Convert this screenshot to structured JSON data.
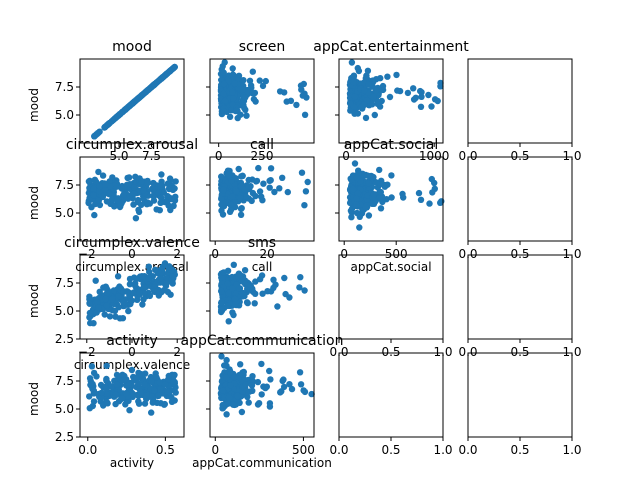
{
  "figure": {
    "background": "#ffffff",
    "marker_color": "#1f77b4"
  },
  "chart_data": [
    {
      "type": "scatter",
      "title": "mood",
      "ylabel": "mood",
      "xlabel": "",
      "row": 0,
      "col": 0,
      "xlim": [
        2,
        10
      ],
      "ylim": [
        2.5,
        10
      ],
      "xticks": [
        "5.0",
        "7.5"
      ],
      "yticks": [
        "5.0",
        "7.5"
      ],
      "shape": "diagonal",
      "x": [],
      "y": []
    },
    {
      "type": "scatter",
      "title": "screen",
      "ylabel": "",
      "xlabel": "",
      "row": 0,
      "col": 1,
      "xlim": [
        -50,
        550
      ],
      "ylim": [
        2.5,
        10
      ],
      "xticks": [
        "0",
        "250"
      ],
      "yticks": [],
      "shape": "blob-left",
      "x": [],
      "y": []
    },
    {
      "type": "scatter",
      "title": "appCat.entertainment",
      "ylabel": "",
      "xlabel": "",
      "row": 0,
      "col": 2,
      "xlim": [
        -80,
        1100
      ],
      "ylim": [
        2.5,
        10
      ],
      "xticks": [
        "0",
        "1000"
      ],
      "yticks": [],
      "shape": "blob-left",
      "x": [],
      "y": []
    },
    {
      "type": "scatter",
      "title": "",
      "ylabel": "",
      "xlabel": "",
      "row": 0,
      "col": 3,
      "xlim": [
        0,
        1
      ],
      "ylim": [
        0,
        1
      ],
      "xticks": [
        "0.0",
        "0.5",
        "1.0"
      ],
      "yticks": [],
      "shape": "empty",
      "x": [],
      "y": []
    },
    {
      "type": "scatter",
      "title": "circumplex.arousal",
      "ylabel": "mood",
      "xlabel": "circumplex.arousal",
      "row": 1,
      "col": 0,
      "xlim": [
        -2.3,
        2.3
      ],
      "ylim": [
        2.5,
        10
      ],
      "xticks": [
        "−2",
        "0",
        "2"
      ],
      "yticks": [
        "5.0",
        "7.5"
      ],
      "shape": "blob-wide",
      "x": [],
      "y": []
    },
    {
      "type": "scatter",
      "title": "call",
      "ylabel": "",
      "xlabel": "call",
      "row": 1,
      "col": 1,
      "xlim": [
        -2,
        38
      ],
      "ylim": [
        2.5,
        10
      ],
      "xticks": [
        "0",
        "20"
      ],
      "yticks": [],
      "shape": "blob-left",
      "x": [],
      "y": []
    },
    {
      "type": "scatter",
      "title": "appCat.social",
      "ylabel": "",
      "xlabel": "appCat.social",
      "row": 1,
      "col": 2,
      "xlim": [
        -50,
        950
      ],
      "ylim": [
        2.5,
        10
      ],
      "xticks": [
        "0",
        "500"
      ],
      "yticks": [],
      "shape": "blob-left",
      "x": [],
      "y": []
    },
    {
      "type": "scatter",
      "title": "",
      "ylabel": "",
      "xlabel": "",
      "row": 1,
      "col": 3,
      "xlim": [
        0,
        1
      ],
      "ylim": [
        0,
        1
      ],
      "xticks": [
        "0.0",
        "0.5",
        "1.0"
      ],
      "yticks": [],
      "shape": "empty",
      "x": [],
      "y": []
    },
    {
      "type": "scatter",
      "title": "circumplex.valence",
      "ylabel": "mood",
      "xlabel": "circumplex.valence",
      "row": 2,
      "col": 0,
      "xlim": [
        -2.3,
        2.3
      ],
      "ylim": [
        2.5,
        10
      ],
      "xticks": [
        "−2",
        "0",
        "2"
      ],
      "yticks": [
        "2.5",
        "5.0",
        "7.5"
      ],
      "shape": "positive",
      "x": [],
      "y": []
    },
    {
      "type": "scatter",
      "title": "sms",
      "ylabel": "",
      "xlabel": "",
      "row": 2,
      "col": 1,
      "xlim": [
        -3,
        60
      ],
      "ylim": [
        2.5,
        10
      ],
      "xticks": [],
      "yticks": [],
      "shape": "blob-left",
      "x": [],
      "y": []
    },
    {
      "type": "scatter",
      "title": "",
      "ylabel": "",
      "xlabel": "",
      "row": 2,
      "col": 2,
      "xlim": [
        0,
        1
      ],
      "ylim": [
        0,
        1
      ],
      "xticks": [
        "0.0",
        "0.5",
        "1.0"
      ],
      "yticks": [],
      "shape": "empty",
      "x": [],
      "y": []
    },
    {
      "type": "scatter",
      "title": "",
      "ylabel": "",
      "xlabel": "",
      "row": 2,
      "col": 3,
      "xlim": [
        0,
        1
      ],
      "ylim": [
        0,
        1
      ],
      "xticks": [
        "0.0",
        "0.5",
        "1.0"
      ],
      "yticks": [],
      "shape": "empty",
      "x": [],
      "y": []
    },
    {
      "type": "scatter",
      "title": "activity",
      "ylabel": "mood",
      "xlabel": "activity",
      "row": 3,
      "col": 0,
      "xlim": [
        -0.05,
        0.62
      ],
      "ylim": [
        2.5,
        10
      ],
      "xticks": [
        "0.0",
        "0.5"
      ],
      "yticks": [
        "2.5",
        "5.0",
        "7.5"
      ],
      "shape": "blob-wide",
      "x": [],
      "y": []
    },
    {
      "type": "scatter",
      "title": "appCat.communication",
      "ylabel": "",
      "xlabel": "appCat.communication",
      "row": 3,
      "col": 1,
      "xlim": [
        -30,
        560
      ],
      "ylim": [
        2.5,
        10
      ],
      "xticks": [
        "0",
        "500"
      ],
      "yticks": [],
      "shape": "blob-left",
      "x": [],
      "y": []
    },
    {
      "type": "scatter",
      "title": "",
      "ylabel": "",
      "xlabel": "",
      "row": 3,
      "col": 2,
      "xlim": [
        0,
        1
      ],
      "ylim": [
        0,
        1
      ],
      "xticks": [
        "0.0",
        "0.5",
        "1.0"
      ],
      "yticks": [],
      "shape": "empty",
      "x": [],
      "y": []
    },
    {
      "type": "scatter",
      "title": "",
      "ylabel": "",
      "xlabel": "",
      "row": 3,
      "col": 3,
      "xlim": [
        0,
        1
      ],
      "ylim": [
        0,
        1
      ],
      "xticks": [
        "0.0",
        "0.5",
        "1.0"
      ],
      "yticks": [],
      "shape": "empty",
      "x": [],
      "y": []
    }
  ]
}
